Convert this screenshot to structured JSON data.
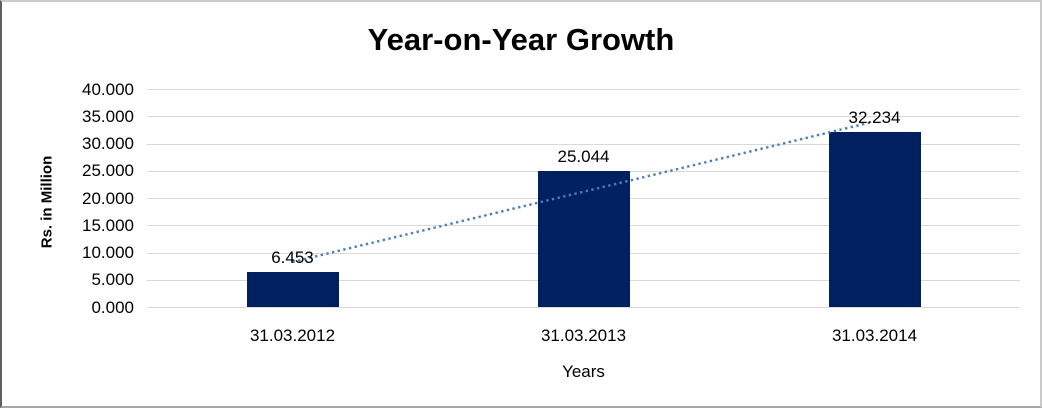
{
  "chart": {
    "colors": {
      "bar": "#002060",
      "trendline": "#4a7ebb",
      "gridline": "#d9d9d9",
      "text": "#000000"
    }
  },
  "chart_data": {
    "type": "bar",
    "title": "Year-on-Year Growth",
    "xlabel": "Years",
    "ylabel": "Rs. in Million",
    "categories": [
      "31.03.2012",
      "31.03.2013",
      "31.03.2014"
    ],
    "values": [
      6.453,
      25.044,
      32.234
    ],
    "data_labels": [
      "6.453",
      "25.044",
      "32.234"
    ],
    "y_ticks": [
      "0.000",
      "5.000",
      "10.000",
      "15.000",
      "20.000",
      "25.000",
      "30.000",
      "35.000",
      "40.000"
    ],
    "ylim": [
      0,
      40
    ],
    "grid": true,
    "legend": false,
    "trendline": {
      "type": "linear",
      "style": "dotted",
      "color": "#4a7ebb"
    }
  }
}
